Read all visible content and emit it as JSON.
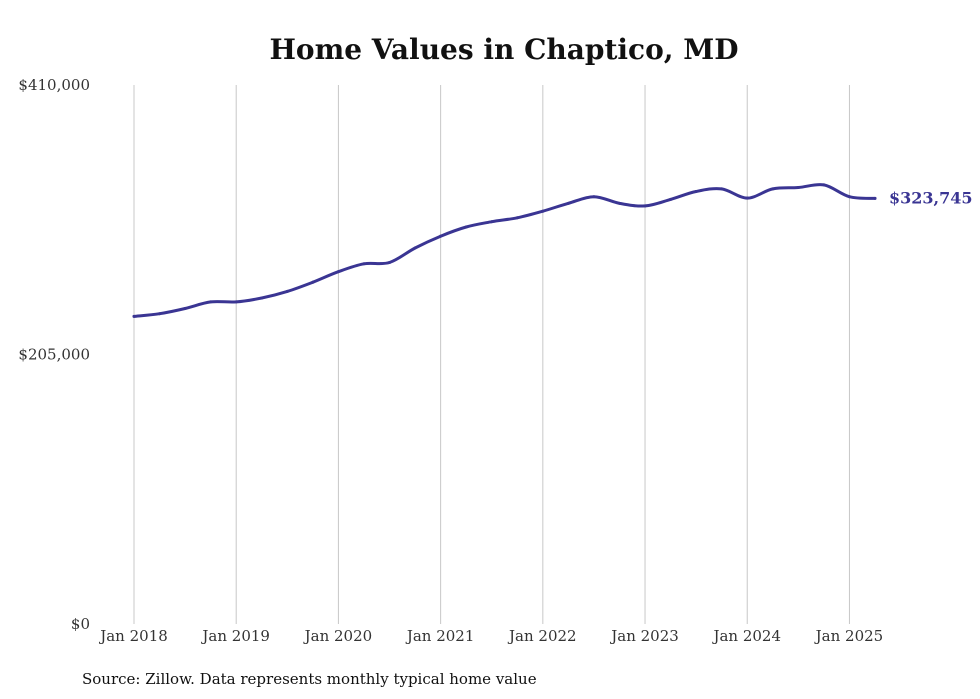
{
  "chart_data": {
    "type": "line",
    "title": "Home Values in Chaptico, MD",
    "xlabel": "",
    "ylabel": "",
    "ylim": [
      0,
      410000
    ],
    "yticks": [
      {
        "value": 0,
        "label": "$0"
      },
      {
        "value": 205000,
        "label": "$205,000"
      },
      {
        "value": 410000,
        "label": "$410,000"
      }
    ],
    "xticks": [
      {
        "value": 2018.0,
        "label": "Jan 2018"
      },
      {
        "value": 2019.0,
        "label": "Jan 2019"
      },
      {
        "value": 2020.0,
        "label": "Jan 2020"
      },
      {
        "value": 2021.0,
        "label": "Jan 2021"
      },
      {
        "value": 2022.0,
        "label": "Jan 2022"
      },
      {
        "value": 2023.0,
        "label": "Jan 2023"
      },
      {
        "value": 2024.0,
        "label": "Jan 2024"
      },
      {
        "value": 2025.0,
        "label": "Jan 2025"
      }
    ],
    "xlim": [
      2018.0,
      2025.25
    ],
    "grid": "vertical",
    "colors": {
      "line": "#3a3593",
      "grid": "#c8c8c8"
    },
    "end_label": "$323,745",
    "source": "Source: Zillow. Data represents monthly typical home value",
    "series": [
      {
        "values": [
          {
            "x": 2018.0,
            "y": 234000
          },
          {
            "x": 2018.25,
            "y": 236000
          },
          {
            "x": 2018.5,
            "y": 240000
          },
          {
            "x": 2018.75,
            "y": 245000
          },
          {
            "x": 2019.0,
            "y": 245000
          },
          {
            "x": 2019.25,
            "y": 248000
          },
          {
            "x": 2019.5,
            "y": 253000
          },
          {
            "x": 2019.75,
            "y": 260000
          },
          {
            "x": 2020.0,
            "y": 268000
          },
          {
            "x": 2020.25,
            "y": 274000
          },
          {
            "x": 2020.5,
            "y": 275000
          },
          {
            "x": 2020.75,
            "y": 286000
          },
          {
            "x": 2021.0,
            "y": 295000
          },
          {
            "x": 2021.25,
            "y": 302000
          },
          {
            "x": 2021.5,
            "y": 306000
          },
          {
            "x": 2021.75,
            "y": 309000
          },
          {
            "x": 2022.0,
            "y": 314000
          },
          {
            "x": 2022.25,
            "y": 320000
          },
          {
            "x": 2022.5,
            "y": 325000
          },
          {
            "x": 2022.75,
            "y": 320000
          },
          {
            "x": 2023.0,
            "y": 318000
          },
          {
            "x": 2023.25,
            "y": 323000
          },
          {
            "x": 2023.5,
            "y": 329000
          },
          {
            "x": 2023.75,
            "y": 331000
          },
          {
            "x": 2024.0,
            "y": 324000
          },
          {
            "x": 2024.25,
            "y": 331000
          },
          {
            "x": 2024.5,
            "y": 332000
          },
          {
            "x": 2024.75,
            "y": 334000
          },
          {
            "x": 2025.0,
            "y": 325000
          },
          {
            "x": 2025.25,
            "y": 323745
          }
        ]
      }
    ]
  }
}
